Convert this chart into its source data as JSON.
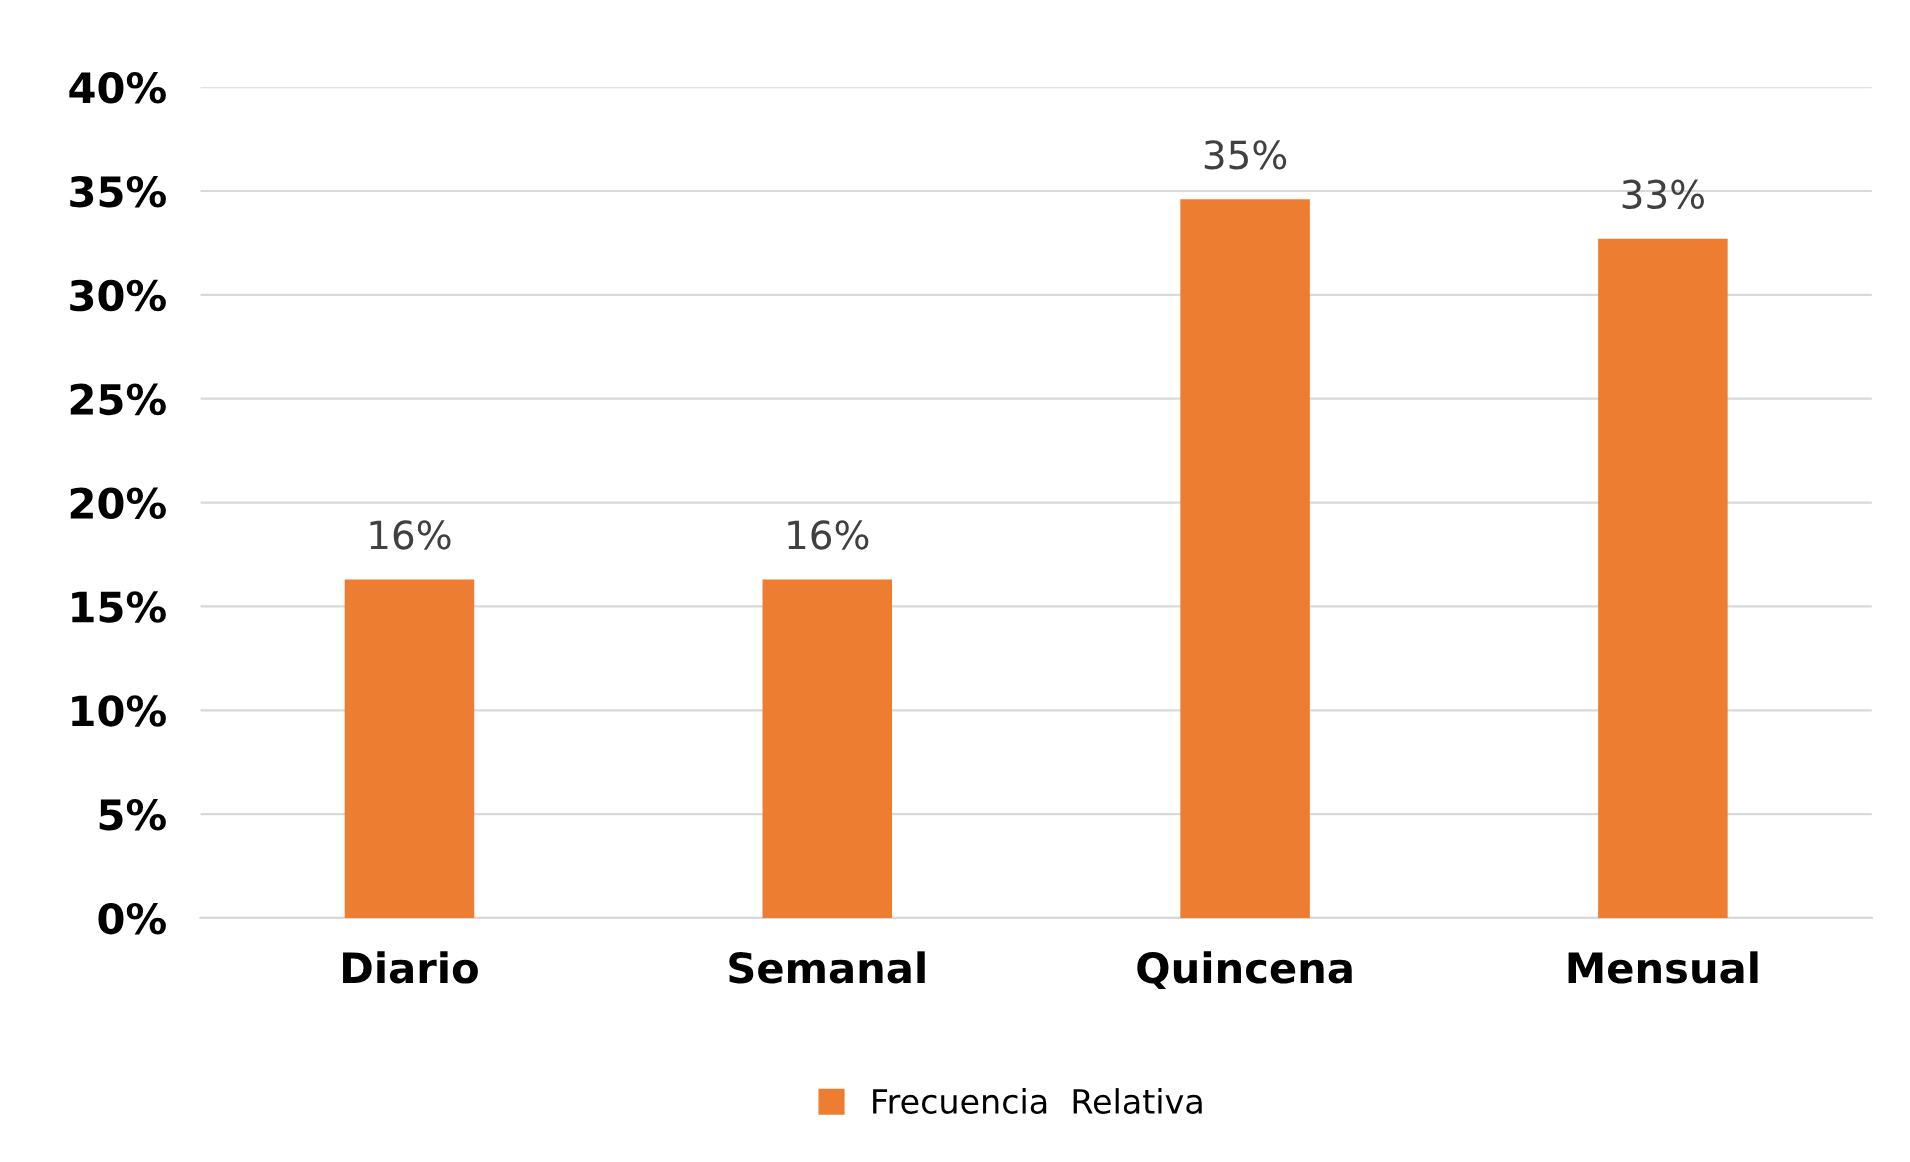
{
  "chart_data": {
    "type": "bar",
    "categories": [
      "Diario",
      "Semanal",
      "Quincena",
      "Mensual"
    ],
    "series": [
      {
        "name": "Frecuencia  Relativa",
        "color": "#ed7d31",
        "values": [
          16.3,
          16.3,
          34.6,
          32.7
        ],
        "value_labels": [
          "16%",
          "16%",
          "35%",
          "33%"
        ]
      }
    ],
    "ylim": [
      0,
      40
    ],
    "yticks": [
      {
        "value": 0,
        "label": "0%"
      },
      {
        "value": 5,
        "label": "5%"
      },
      {
        "value": 10,
        "label": "10%"
      },
      {
        "value": 15,
        "label": "15%"
      },
      {
        "value": 20,
        "label": "20%"
      },
      {
        "value": 25,
        "label": "25%"
      },
      {
        "value": 30,
        "label": "30%"
      },
      {
        "value": 35,
        "label": "35%"
      },
      {
        "value": 40,
        "label": "40%"
      }
    ],
    "grid": "y",
    "legend": "bottom"
  }
}
